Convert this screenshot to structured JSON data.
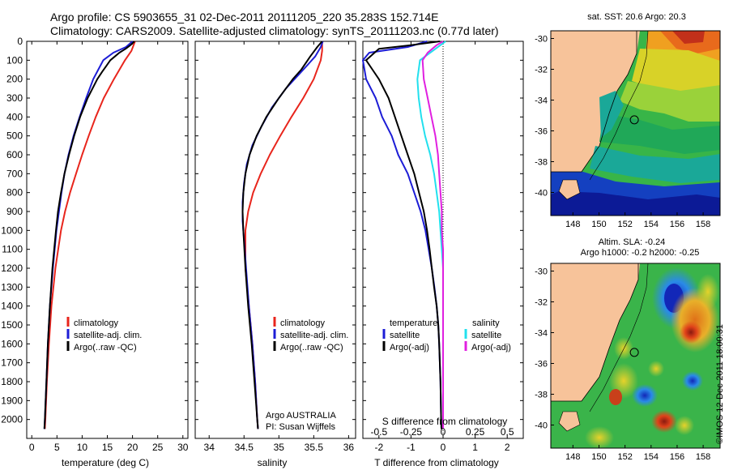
{
  "header": {
    "line1": "Argo profile: CS 5903655_31 02-Dec-2011 20111205_220 35.283S 152.714E",
    "line2": "Climatology: CARS2009. Satellite-adjusted climatology: synTS_20111203.nc (0.77d later)"
  },
  "colors": {
    "climatology": "#e8251c",
    "satellite": "#1d1dd6",
    "argo": "#000000",
    "sat_salinity": "#22e0ee",
    "argo_salinity": "#e020e0",
    "land": "#f7c39a"
  },
  "chart_data": [
    {
      "type": "line",
      "id": "temperature",
      "xlabel": "temperature (deg C)",
      "ylabel": "",
      "xlim": [
        -1,
        31
      ],
      "ylim": [
        2100,
        0
      ],
      "xticks": [
        0,
        5,
        10,
        15,
        20,
        25,
        30
      ],
      "yticks": [
        0,
        100,
        200,
        300,
        400,
        500,
        600,
        700,
        800,
        900,
        1000,
        1100,
        1200,
        1300,
        1400,
        1500,
        1600,
        1700,
        1800,
        1900,
        2000
      ],
      "legend": [
        "climatology",
        "satellite-adj. clim.",
        "Argo(..raw -QC)"
      ],
      "series": [
        {
          "name": "climatology",
          "color": "#e8251c",
          "depth": [
            0,
            50,
            100,
            200,
            300,
            400,
            500,
            600,
            700,
            800,
            900,
            1000,
            1200,
            1400,
            1600,
            1800,
            2000,
            2050
          ],
          "values": [
            20.5,
            19.8,
            18.5,
            16.3,
            14.3,
            12.7,
            11.3,
            10.0,
            8.8,
            7.6,
            6.6,
            5.8,
            4.7,
            3.9,
            3.4,
            3.0,
            2.7,
            2.6
          ]
        },
        {
          "name": "satellite-adj. clim.",
          "color": "#1d1dd6",
          "depth": [
            0,
            30,
            60,
            100,
            150,
            200,
            300,
            400,
            500,
            600,
            700,
            800,
            900,
            1000,
            1200,
            1400,
            1600,
            1800,
            2000,
            2050
          ],
          "values": [
            20.0,
            18.7,
            16.2,
            14.2,
            13.2,
            12.2,
            10.8,
            9.5,
            8.3,
            7.3,
            6.5,
            5.9,
            5.4,
            4.9,
            4.2,
            3.6,
            3.2,
            2.9,
            2.6,
            2.5
          ]
        },
        {
          "name": "Argo(..raw -QC)",
          "color": "#000000",
          "depth": [
            0,
            20,
            40,
            60,
            80,
            100,
            130,
            160,
            200,
            300,
            400,
            500,
            600,
            700,
            800,
            900,
            1000,
            1200,
            1400,
            1600,
            1800,
            2000,
            2050
          ],
          "values": [
            20.4,
            19.6,
            18.6,
            17.4,
            16.5,
            15.6,
            14.8,
            14.0,
            13.0,
            11.1,
            9.6,
            8.4,
            7.4,
            6.5,
            5.8,
            5.2,
            4.8,
            4.1,
            3.6,
            3.2,
            2.9,
            2.6,
            2.5
          ]
        }
      ]
    },
    {
      "type": "line",
      "id": "salinity",
      "xlabel": "salinity",
      "xlim": [
        33.8,
        36.1
      ],
      "ylim": [
        2100,
        0
      ],
      "xticks": [
        34,
        34.5,
        35,
        35.5,
        36
      ],
      "xticklabels": [
        "34",
        "34.5",
        "35",
        "35.5",
        "36"
      ],
      "legend": [
        "climatology",
        "satellite-adj. clim.",
        "Argo(..raw -QC)"
      ],
      "annotation": [
        "Argo AUSTRALIA",
        "PI: Susan Wijffels"
      ],
      "series": [
        {
          "name": "climatology",
          "color": "#e8251c",
          "depth": [
            0,
            50,
            100,
            200,
            300,
            400,
            500,
            600,
            700,
            800,
            900,
            1000,
            1200,
            1400,
            1600,
            1800,
            2000,
            2050
          ],
          "values": [
            35.62,
            35.62,
            35.6,
            35.5,
            35.35,
            35.18,
            35.02,
            34.87,
            34.74,
            34.63,
            34.56,
            34.52,
            34.52,
            34.57,
            34.62,
            34.66,
            34.69,
            34.7
          ]
        },
        {
          "name": "satellite-adj. clim.",
          "color": "#1d1dd6",
          "depth": [
            0,
            30,
            80,
            150,
            250,
            350,
            450,
            550,
            650,
            750,
            850,
            950,
            1050,
            1200,
            1400,
            1600,
            1800,
            2000,
            2050
          ],
          "values": [
            35.63,
            35.6,
            35.52,
            35.35,
            35.1,
            34.9,
            34.75,
            34.62,
            34.54,
            34.5,
            34.48,
            34.48,
            34.5,
            34.53,
            34.57,
            34.62,
            34.66,
            34.69,
            34.7
          ]
        },
        {
          "name": "Argo(..raw -QC)",
          "color": "#000000",
          "depth": [
            0,
            30,
            80,
            150,
            200,
            250,
            300,
            400,
            500,
            600,
            700,
            800,
            900,
            1000,
            1200,
            1400,
            1600,
            1800,
            2000,
            2050
          ],
          "values": [
            35.62,
            35.55,
            35.45,
            35.32,
            35.2,
            35.1,
            35.0,
            34.82,
            34.68,
            34.58,
            34.52,
            34.49,
            34.48,
            34.49,
            34.52,
            34.56,
            34.61,
            34.65,
            34.69,
            34.7
          ]
        }
      ]
    },
    {
      "type": "line",
      "id": "differences",
      "xlabel": "T difference from climatology",
      "xlabel2": "S difference from climatology",
      "xlim": [
        -2.5,
        2.5
      ],
      "ylim": [
        2100,
        0
      ],
      "xticks": [
        -2,
        -1,
        0,
        1,
        2
      ],
      "xticks2": [
        -0.5,
        -0.25,
        0,
        0.25,
        0.5
      ],
      "xticklabels2": [
        "-0.5",
        "-0.25",
        "0",
        "0.25",
        "0.5"
      ],
      "legend_temperature_title": "temperature",
      "legend_salinity_title": "salinity",
      "legend": [
        "satellite",
        "Argo(-adj)",
        "satellite",
        "Argo(-adj)"
      ],
      "series": [
        {
          "name": "T satellite",
          "color": "#1d1dd6",
          "depth": [
            0,
            30,
            60,
            100,
            200,
            300,
            400,
            500,
            600,
            700,
            800,
            900,
            1000,
            1100,
            1200,
            1300,
            1400,
            1500,
            1600,
            1800,
            2000,
            2050
          ],
          "values": [
            -0.5,
            -1.1,
            -2.3,
            -2.5,
            -2.4,
            -2.1,
            -1.9,
            -1.6,
            -1.4,
            -1.1,
            -0.9,
            -0.7,
            -0.55,
            -0.45,
            -0.35,
            -0.27,
            -0.2,
            -0.15,
            -0.12,
            -0.08,
            -0.06,
            -0.05
          ]
        },
        {
          "name": "T Argo(-adj)",
          "color": "#000000",
          "depth": [
            0,
            20,
            40,
            70,
            100,
            150,
            200,
            300,
            400,
            500,
            600,
            700,
            800,
            900,
            1000,
            1100,
            1200,
            1300,
            1400,
            1500,
            1600,
            1800,
            2000,
            2050
          ],
          "values": [
            -0.1,
            -1.0,
            -2.0,
            -2.2,
            -2.4,
            -2.2,
            -2.0,
            -1.7,
            -1.5,
            -1.3,
            -1.1,
            -0.9,
            -0.75,
            -0.6,
            -0.5,
            -0.42,
            -0.35,
            -0.28,
            -0.2,
            -0.15,
            -0.12,
            -0.08,
            -0.06,
            -0.05
          ]
        },
        {
          "name": "S satellite",
          "color": "#22e0ee",
          "depth": [
            0,
            50,
            100,
            200,
            300,
            400,
            500,
            600,
            700,
            800,
            900,
            1000,
            1100,
            1200,
            1300,
            1400,
            1600,
            1800,
            2000,
            2050
          ],
          "values": [
            0.02,
            -0.08,
            -0.18,
            -0.2,
            -0.19,
            -0.17,
            -0.14,
            -0.1,
            -0.07,
            -0.05,
            -0.03,
            -0.02,
            -0.01,
            0,
            0,
            0,
            0,
            0,
            0,
            0
          ]
        },
        {
          "name": "S Argo(-adj)",
          "color": "#e020e0",
          "depth": [
            0,
            20,
            60,
            100,
            200,
            300,
            400,
            500,
            600,
            700,
            800,
            900,
            1000,
            1100,
            1200,
            1300,
            1400,
            1600,
            1800,
            2000,
            2050
          ],
          "values": [
            0.0,
            -0.05,
            -0.12,
            -0.16,
            -0.15,
            -0.12,
            -0.09,
            -0.06,
            -0.04,
            -0.03,
            -0.02,
            -0.01,
            -0.01,
            0,
            0,
            0,
            0,
            0,
            0,
            0,
            0
          ]
        }
      ]
    },
    {
      "type": "heatmap",
      "id": "sst_map",
      "title": "sat. SST: 20.6  Argo: 20.3",
      "xticks": [
        148,
        150,
        152,
        154,
        156,
        158
      ],
      "yticks": [
        -30,
        -32,
        -34,
        -36,
        -38,
        -40
      ],
      "xlim": [
        146.3,
        159.3
      ],
      "ylim": [
        -41.5,
        -29.5
      ],
      "marker": {
        "lon": 152.714,
        "lat": -35.283
      }
    },
    {
      "type": "heatmap",
      "id": "sla_map",
      "title": "Altim. SLA: -0.24",
      "subtitle": "Argo h1000: -0.2  h2000: -0.25",
      "xticks": [
        148,
        150,
        152,
        154,
        156,
        158
      ],
      "yticks": [
        -30,
        -32,
        -34,
        -36,
        -38,
        -40
      ],
      "xlim": [
        146.3,
        159.3
      ],
      "ylim": [
        -41.5,
        -29.5
      ],
      "marker": {
        "lon": 152.714,
        "lat": -35.283
      }
    }
  ],
  "side_text": "©IMOS 12-Dec-2011 18:00:31"
}
